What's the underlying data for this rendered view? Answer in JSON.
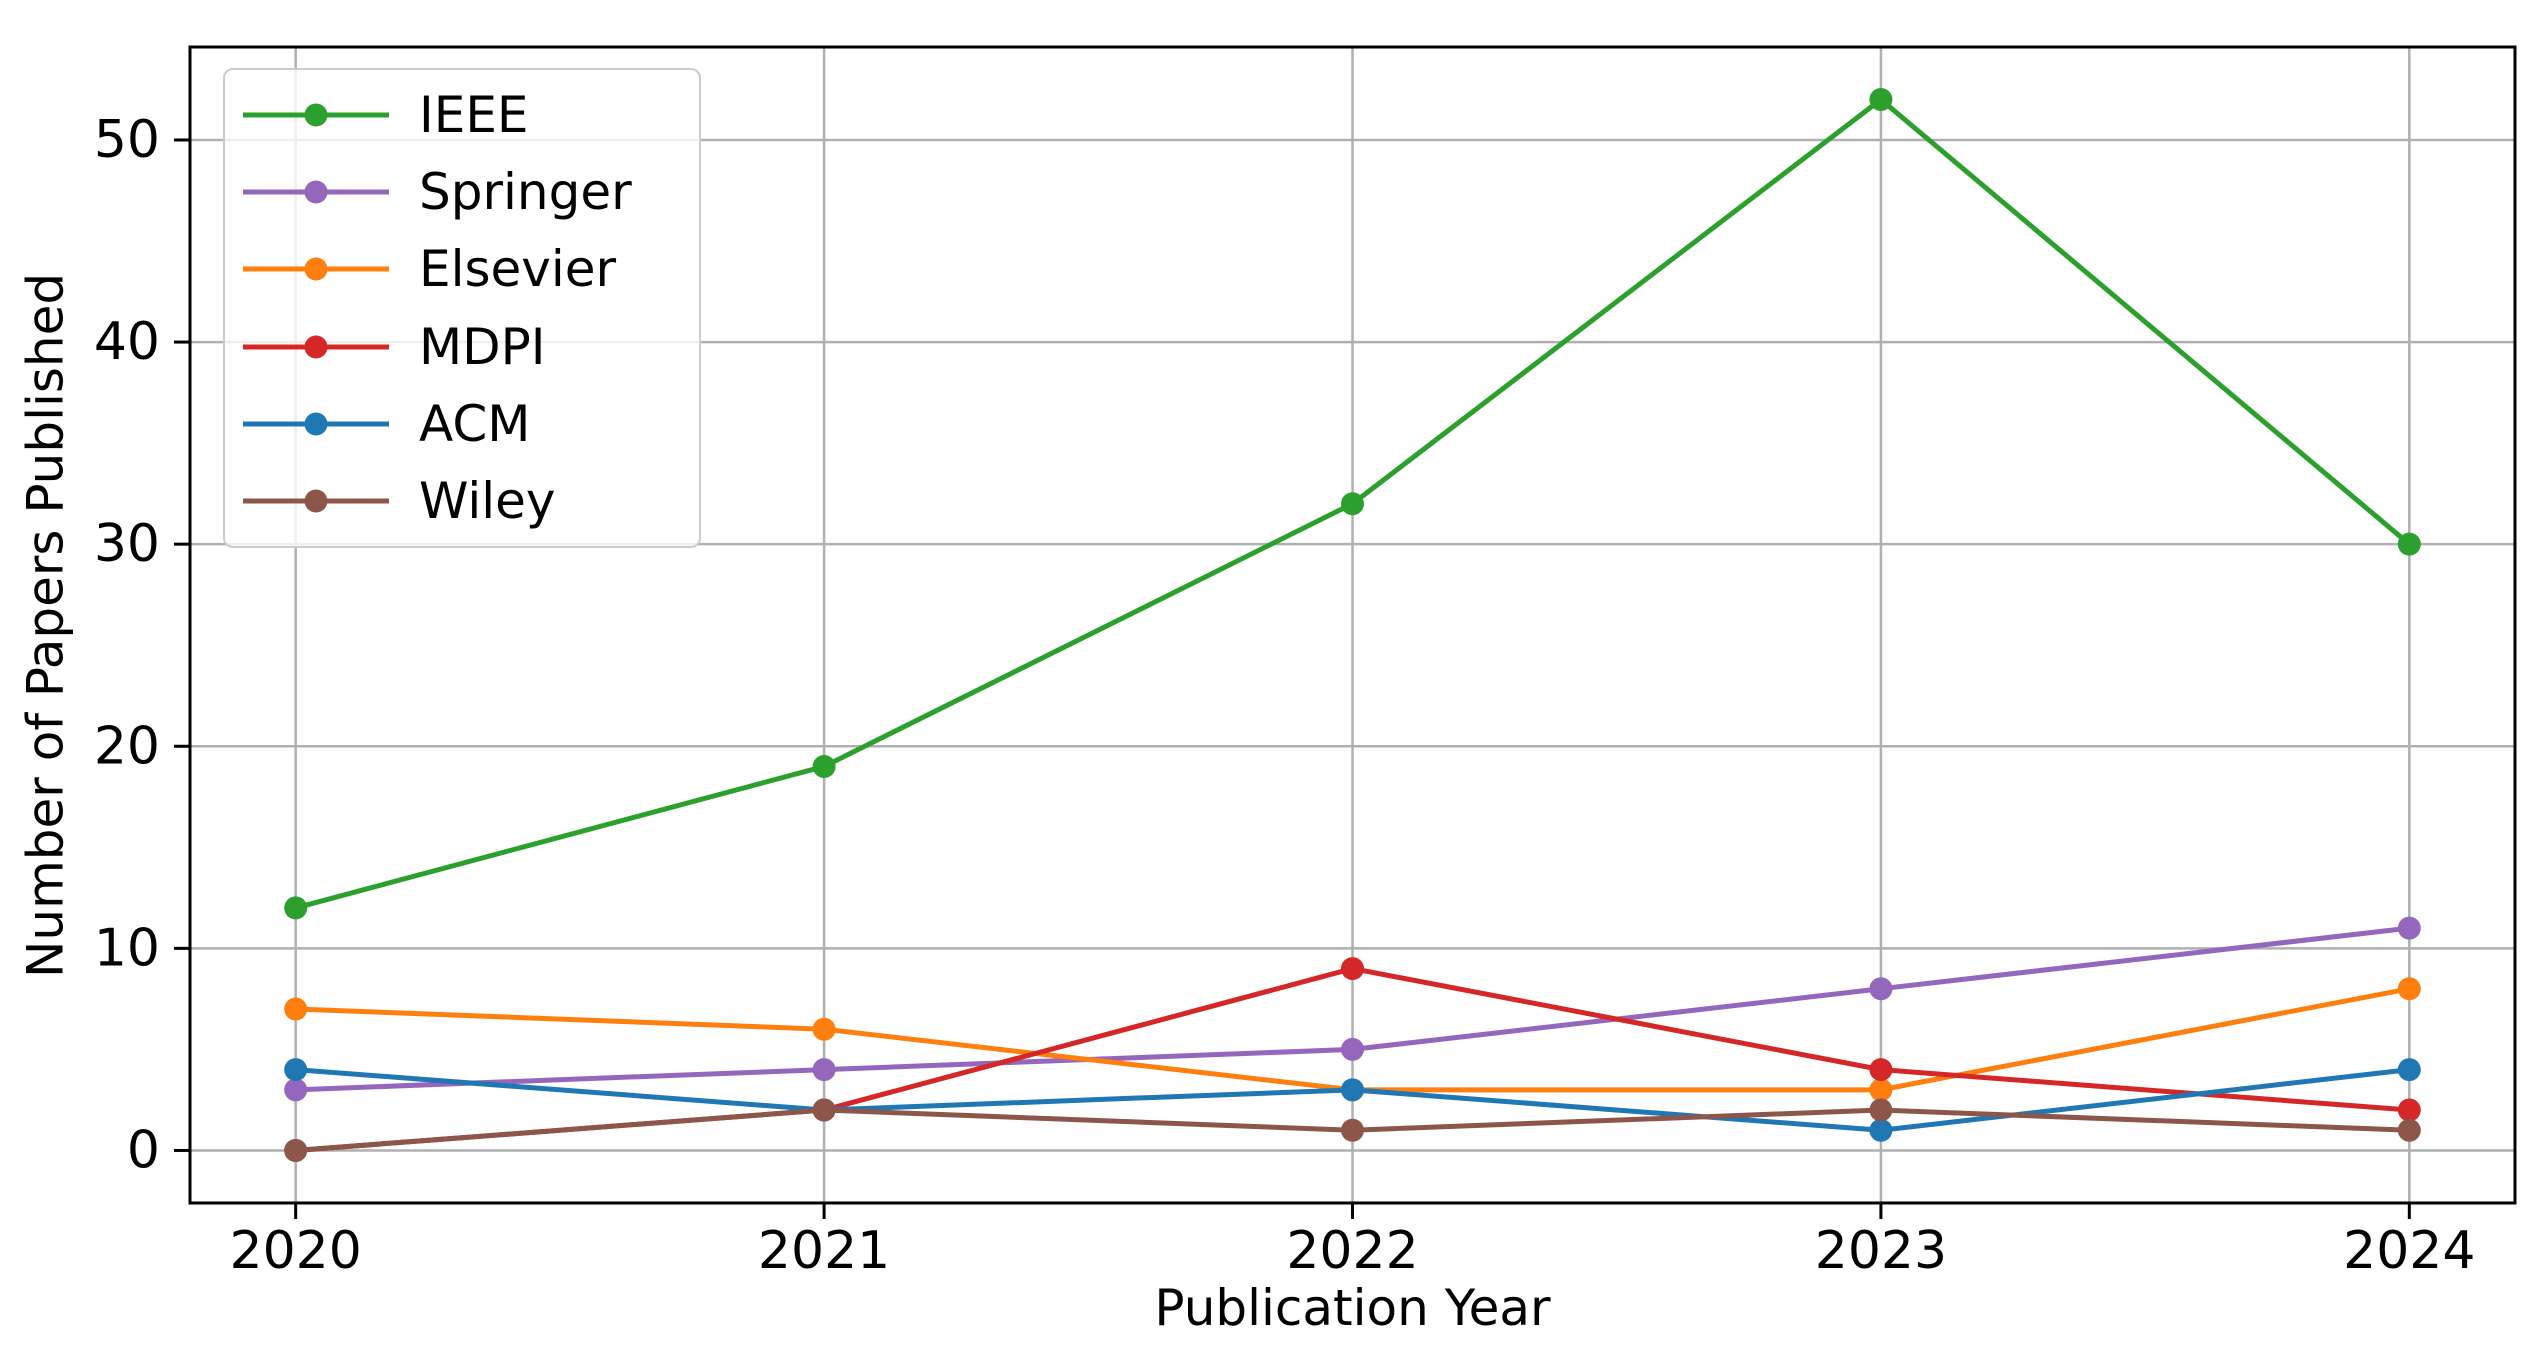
{
  "chart_data": {
    "type": "line",
    "title": "",
    "xlabel": "Publication Year",
    "ylabel": "Number of Papers Published",
    "x": [
      2020,
      2021,
      2022,
      2023,
      2024
    ],
    "x_tick_labels": [
      "2020",
      "2021",
      "2022",
      "2023",
      "2024"
    ],
    "y_ticks": [
      0,
      10,
      20,
      30,
      40,
      50
    ],
    "xlim": [
      2019.8,
      2024.2
    ],
    "ylim": [
      -2.6,
      54.6
    ],
    "grid": true,
    "grid_color": "#b0b0b0",
    "axis_color": "#000000",
    "legend_position": "upper-left",
    "marker": "o",
    "series": [
      {
        "name": "IEEE",
        "color": "#2ca02c",
        "values": [
          12,
          19,
          32,
          52,
          30
        ]
      },
      {
        "name": "Springer",
        "color": "#9467bd",
        "values": [
          3,
          4,
          5,
          8,
          11
        ]
      },
      {
        "name": "Elsevier",
        "color": "#ff7f0e",
        "values": [
          7,
          6,
          3,
          3,
          8
        ]
      },
      {
        "name": "MDPI",
        "color": "#d62728",
        "values": [
          0,
          2,
          9,
          4,
          2
        ]
      },
      {
        "name": "ACM",
        "color": "#1f77b4",
        "values": [
          4,
          2,
          3,
          1,
          4
        ]
      },
      {
        "name": "Wiley",
        "color": "#8c564b",
        "values": [
          0,
          2,
          1,
          2,
          1
        ]
      }
    ]
  }
}
